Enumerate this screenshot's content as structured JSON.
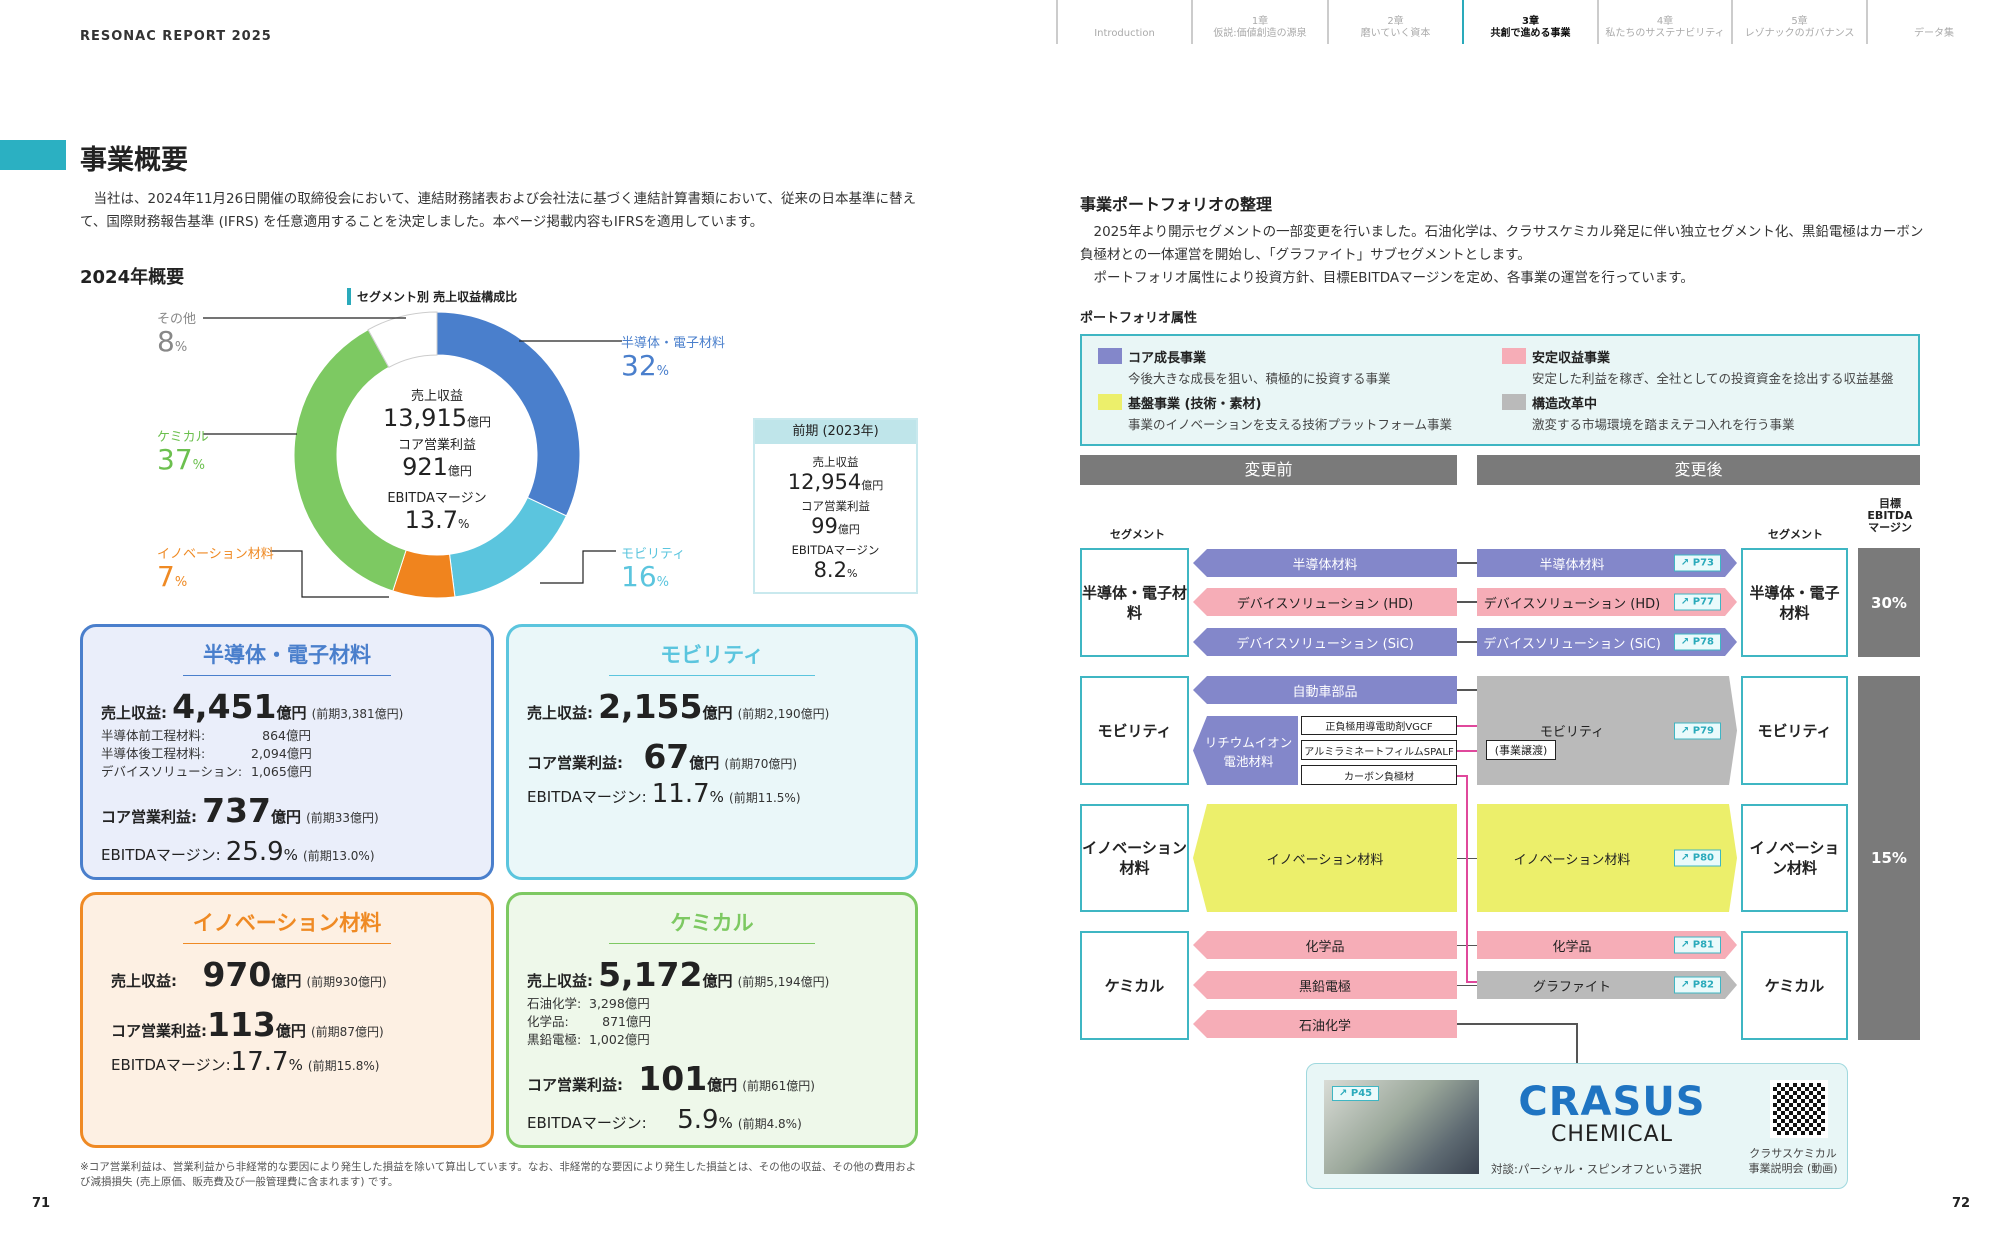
{
  "header": {
    "brand": "RESONAC REPORT 2025",
    "tabs": [
      {
        "chapter": "",
        "label": "Introduction"
      },
      {
        "chapter": "1章",
        "label": "仮説:価値創造の源泉"
      },
      {
        "chapter": "2章",
        "label": "磨いていく資本"
      },
      {
        "chapter": "3章",
        "label": "共創で進める事業",
        "active": true
      },
      {
        "chapter": "4章",
        "label": "私たちのサステナビリティ"
      },
      {
        "chapter": "5章",
        "label": "レゾナックのガバナンス"
      },
      {
        "chapter": "",
        "label": "データ集"
      }
    ]
  },
  "left": {
    "title": "事業概要",
    "intro": "　当社は、2024年11月26日開催の取締役会において、連結財務諸表および会社法に基づく連結計算書類において、従来の日本基準に替えて、国際財務報告基準 (IFRS) を任意適用することを決定しました。本ページ掲載内容もIFRSを適用しています。",
    "overview_title": "2024年概要",
    "center": {
      "rev_label": "売上収益",
      "rev_value": "13,915",
      "rev_unit": "億円",
      "op_label": "コア営業利益",
      "op_value": "921",
      "op_unit": "億円",
      "ebitda_label": "EBITDAマージン",
      "ebitda_value": "13.7",
      "ebitda_unit": "%"
    },
    "prev": {
      "title": "前期 (2023年)",
      "rev_label": "売上収益",
      "rev_value": "12,954",
      "rev_unit": "億円",
      "op_label": "コア営業利益",
      "op_value": "99",
      "op_unit": "億円",
      "ebitda_label": "EBITDAマージン",
      "ebitda_value": "8.2",
      "ebitda_unit": "%"
    },
    "cards": [
      {
        "title": "半導体・電子材料",
        "color": "#4a7fcc",
        "rev_label": "売上収益:",
        "rev": "4,451",
        "unit": "億円",
        "rev_prev": "(前期3,381億円)",
        "subs": [
          {
            "k": "半導体前工程材料:",
            "v": "864億円"
          },
          {
            "k": "半導体後工程材料:",
            "v": "2,094億円"
          },
          {
            "k": "デバイスソリューション:",
            "v": "1,065億円"
          }
        ],
        "op_label": "コア営業利益:",
        "op": "737",
        "op_prev": "(前期33億円)",
        "eb_label": "EBITDAマージン:",
        "eb": "25.9",
        "eb_prev": "(前期13.0%)"
      },
      {
        "title": "モビリティ",
        "color": "#5bc5de",
        "rev_label": "売上収益:",
        "rev": "2,155",
        "unit": "億円",
        "rev_prev": "(前期2,190億円)",
        "op_label": "コア営業利益:",
        "op": "67",
        "op_prev": "(前期70億円)",
        "eb_label": "EBITDAマージン:",
        "eb": "11.7",
        "eb_prev": "(前期11.5%)"
      },
      {
        "title": "イノベーション材料",
        "color": "#ef8a24",
        "rev_label": "売上収益:",
        "rev": "970",
        "unit": "億円",
        "rev_prev": "(前期930億円)",
        "op_label": "コア営業利益:",
        "op": "113",
        "op_prev": "(前期87億円)",
        "eb_label": "EBITDAマージン:",
        "eb": "17.7",
        "eb_prev": "(前期15.8%)"
      },
      {
        "title": "ケミカル",
        "color": "#7dc962",
        "rev_label": "売上収益:",
        "rev": "5,172",
        "unit": "億円",
        "rev_prev": "(前期5,194億円)",
        "subs": [
          {
            "k": "石油化学:",
            "v": "3,298億円"
          },
          {
            "k": "化学品:",
            "v": "871億円"
          },
          {
            "k": "黒鉛電極:",
            "v": "1,002億円"
          }
        ],
        "op_label": "コア営業利益:",
        "op": "101",
        "op_prev": "(前期61億円)",
        "eb_label": "EBITDAマージン:",
        "eb": "5.9",
        "eb_prev": "(前期4.8%)"
      }
    ],
    "pct": "%",
    "footnote": "※コア営業利益は、営業利益から非経常的な要因により発生した損益を除いて算出しています。なお、非経常的な要因により発生した損益とは、その他の収益、その他の費用および減損損失 (売上原価、販売費及び一般管理費に含まれます) です。",
    "page": "71"
  },
  "chart_data": {
    "type": "pie",
    "title": "セグメント別 売上収益構成比",
    "donut": true,
    "categories": [
      "半導体・電子材料",
      "モビリティ",
      "イノベーション材料",
      "ケミカル",
      "その他"
    ],
    "values": [
      32,
      16,
      7,
      37,
      8
    ],
    "unit": "%",
    "colors": [
      "#4a7fcc",
      "#5bc5de",
      "#f0841e",
      "#7dc962",
      "#ffffff"
    ]
  },
  "right": {
    "title": "事業ポートフォリオの整理",
    "para1": "　2025年より開示セグメントの一部変更を行いました。石油化学は、クラサスケミカル発足に伴い独立セグメント化、黒鉛電極はカーボン負極材との一体運営を開始し、「グラファイト」サブセグメントとします。",
    "para2": "　ポートフォリオ属性により投資方針、目標EBITDAマージンを定め、各事業の運営を行っています。",
    "attr_title": "ポートフォリオ属性",
    "legend": [
      {
        "title": "コア成長事業",
        "desc": "今後大きな成長を狙い、積極的に投資する事業",
        "color": "#8387ca"
      },
      {
        "title": "安定収益事業",
        "desc": "安定した利益を稼ぎ、全社としての投資資金を捻出する収益基盤",
        "color": "#f6adb7"
      },
      {
        "title": "基盤事業 (技術・素材)",
        "desc": "事業のイノベーションを支える技術プラットフォーム事業",
        "color": "#ecef6b"
      },
      {
        "title": "構造改革中",
        "desc": "激変する市場環境を踏まえテコ入れを行う事業",
        "color": "#bababa"
      }
    ],
    "before": "変更前",
    "after": "変更後",
    "segment": "セグメント",
    "target": "目標 EBITDA マージン",
    "segments": [
      "半導体・電子材料",
      "モビリティ",
      "イノベーション材料",
      "ケミカル"
    ],
    "ebitda": [
      "30%",
      "15%"
    ],
    "before_bars": [
      "半導体材料",
      "デバイスソリューション (HD)",
      "デバイスソリューション (SiC)",
      "自動車部品",
      "リチウムイオン電池材料",
      "イノベーション材料",
      "化学品",
      "黒鉛電極",
      "石油化学"
    ],
    "li_items": [
      "正負極用導電助剤VGCF",
      "アルミラミネートフィルムSPALF",
      "カーボン負極材"
    ],
    "after_bars": [
      {
        "label": "半導体材料",
        "ref": "P73"
      },
      {
        "label": "デバイスソリューション (HD)",
        "ref": "P77"
      },
      {
        "label": "デバイスソリューション (SiC)",
        "ref": "P78"
      },
      {
        "label": "モビリティ",
        "ref": "P79"
      },
      {
        "label": "イノベーション材料",
        "ref": "P80"
      },
      {
        "label": "化学品",
        "ref": "P81"
      },
      {
        "label": "グラファイト",
        "ref": "P82"
      }
    ],
    "transfer": "(事業譲渡)",
    "crasus": {
      "ref": "P45",
      "logo": "CRASUS",
      "logo2": "CHEMICAL",
      "caption": "対談:パーシャル・スピンオフという選択",
      "qr_caption1": "クラサスケミカル",
      "qr_caption2": "事業説明会 (動画)"
    },
    "page": "72"
  }
}
